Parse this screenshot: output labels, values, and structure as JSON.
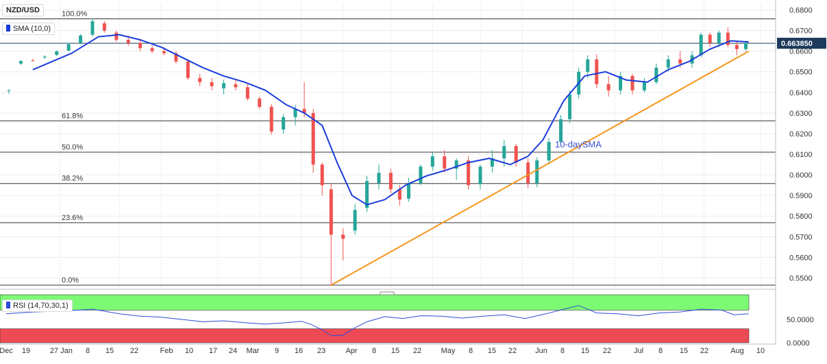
{
  "chart_data": [
    {
      "panel": "price",
      "type": "candlestick",
      "title": "NZD/USD",
      "indicator_label": "SMA (10,0)",
      "annotation": "10-daySMA",
      "current_price_label": "0.663850",
      "current_price": 0.66385,
      "ylim": [
        0.5445,
        0.6835
      ],
      "y_ticks": [
        "0.6800",
        "0.6700",
        "0.6600",
        "0.6500",
        "0.6400",
        "0.6300",
        "0.6200",
        "0.6100",
        "0.6000",
        "0.5900",
        "0.5800",
        "0.5700",
        "0.5600",
        "0.5500"
      ],
      "x_tick_labels": [
        "Dec",
        "19",
        "27",
        "Jan",
        "8",
        "15",
        "22",
        "Feb",
        "10",
        "17",
        "24",
        "Mar",
        "9",
        "16",
        "23",
        "Apr",
        "8",
        "15",
        "22",
        "May",
        "8",
        "15",
        "22",
        "Jun",
        "8",
        "15",
        "22",
        "Jul",
        "8",
        "15",
        "22",
        "Aug",
        "10"
      ],
      "fibonacci": [
        {
          "label": "100.0%",
          "value": 0.6757
        },
        {
          "label": "61.8%",
          "value": 0.6262
        },
        {
          "label": "50.0%",
          "value": 0.611
        },
        {
          "label": "38.2%",
          "value": 0.5958
        },
        {
          "label": "23.6%",
          "value": 0.5768
        },
        {
          "label": "0.0%",
          "value": 0.5465
        }
      ],
      "trendline": {
        "start": {
          "date": "2020-03-19",
          "value": 0.5465
        },
        "end": {
          "date": "2020-08-06",
          "value": 0.66
        }
      },
      "grid": true,
      "colors": {
        "up": "#26a69a",
        "down": "#ef5350",
        "sma": "#1a3bdb",
        "trendline": "#f7941d",
        "fib": "#333333",
        "price_label_bg": "#1d3a5b"
      },
      "sma_points": [
        [
          "2019-12-10",
          0.651
        ],
        [
          "2019-12-23",
          0.659
        ],
        [
          "2020-01-01",
          0.667
        ],
        [
          "2020-01-08",
          0.668
        ],
        [
          "2020-01-15",
          0.6655
        ],
        [
          "2020-01-22",
          0.662
        ],
        [
          "2020-01-29",
          0.657
        ],
        [
          "2020-02-05",
          0.652
        ],
        [
          "2020-02-12",
          0.648
        ],
        [
          "2020-02-19",
          0.645
        ],
        [
          "2020-02-26",
          0.641
        ],
        [
          "2020-03-04",
          0.634
        ],
        [
          "2020-03-10",
          0.63
        ],
        [
          "2020-03-16",
          0.624
        ],
        [
          "2020-03-21",
          0.606
        ],
        [
          "2020-03-26",
          0.59
        ],
        [
          "2020-03-31",
          0.5855
        ],
        [
          "2020-04-06",
          0.588
        ],
        [
          "2020-04-13",
          0.595
        ],
        [
          "2020-04-20",
          0.5995
        ],
        [
          "2020-04-27",
          0.6025
        ],
        [
          "2020-05-04",
          0.606
        ],
        [
          "2020-05-11",
          0.608
        ],
        [
          "2020-05-18",
          0.605
        ],
        [
          "2020-05-24",
          0.609
        ],
        [
          "2020-05-29",
          0.617
        ],
        [
          "2020-06-05",
          0.636
        ],
        [
          "2020-06-12",
          0.648
        ],
        [
          "2020-06-19",
          0.65
        ],
        [
          "2020-06-26",
          0.646
        ],
        [
          "2020-07-03",
          0.645
        ],
        [
          "2020-07-10",
          0.651
        ],
        [
          "2020-07-17",
          0.655
        ],
        [
          "2020-07-24",
          0.661
        ],
        [
          "2020-07-31",
          0.665
        ],
        [
          "2020-08-06",
          0.6645
        ]
      ],
      "candles": [
        {
          "date": "2019-12-02",
          "open": 0.6408,
          "high": 0.6415,
          "low": 0.6392,
          "close": 0.641
        },
        {
          "date": "2019-12-06",
          "open": 0.654,
          "high": 0.6556,
          "low": 0.6534,
          "close": 0.6552
        },
        {
          "date": "2019-12-10",
          "open": 0.6555,
          "high": 0.6563,
          "low": 0.655,
          "close": 0.6552
        },
        {
          "date": "2019-12-14",
          "open": 0.657,
          "high": 0.658,
          "low": 0.6562,
          "close": 0.6574
        },
        {
          "date": "2019-12-18",
          "open": 0.6582,
          "high": 0.6605,
          "low": 0.6576,
          "close": 0.6599
        },
        {
          "date": "2019-12-22",
          "open": 0.6603,
          "high": 0.664,
          "low": 0.6598,
          "close": 0.6634
        },
        {
          "date": "2019-12-26",
          "open": 0.6638,
          "high": 0.6683,
          "low": 0.6633,
          "close": 0.6676
        },
        {
          "date": "2019-12-30",
          "open": 0.668,
          "high": 0.6757,
          "low": 0.6672,
          "close": 0.6745
        },
        {
          "date": "2020-01-03",
          "open": 0.6735,
          "high": 0.6745,
          "low": 0.669,
          "close": 0.67
        },
        {
          "date": "2020-01-07",
          "open": 0.669,
          "high": 0.67,
          "low": 0.6645,
          "close": 0.6655
        },
        {
          "date": "2020-01-11",
          "open": 0.6655,
          "high": 0.6675,
          "low": 0.6625,
          "close": 0.664
        },
        {
          "date": "2020-01-15",
          "open": 0.664,
          "high": 0.666,
          "low": 0.66,
          "close": 0.6615
        },
        {
          "date": "2020-01-19",
          "open": 0.6615,
          "high": 0.6628,
          "low": 0.659,
          "close": 0.66
        },
        {
          "date": "2020-01-23",
          "open": 0.66,
          "high": 0.662,
          "low": 0.658,
          "close": 0.659
        },
        {
          "date": "2020-01-27",
          "open": 0.659,
          "high": 0.66,
          "low": 0.654,
          "close": 0.655
        },
        {
          "date": "2020-01-31",
          "open": 0.655,
          "high": 0.656,
          "low": 0.646,
          "close": 0.647
        },
        {
          "date": "2020-02-04",
          "open": 0.647,
          "high": 0.649,
          "low": 0.643,
          "close": 0.645
        },
        {
          "date": "2020-02-08",
          "open": 0.645,
          "high": 0.647,
          "low": 0.641,
          "close": 0.643
        },
        {
          "date": "2020-02-12",
          "open": 0.642,
          "high": 0.6462,
          "low": 0.639,
          "close": 0.6445
        },
        {
          "date": "2020-02-16",
          "open": 0.644,
          "high": 0.646,
          "low": 0.641,
          "close": 0.6425
        },
        {
          "date": "2020-02-20",
          "open": 0.6425,
          "high": 0.644,
          "low": 0.636,
          "close": 0.637
        },
        {
          "date": "2020-02-24",
          "open": 0.637,
          "high": 0.638,
          "low": 0.632,
          "close": 0.633
        },
        {
          "date": "2020-02-28",
          "open": 0.633,
          "high": 0.6345,
          "low": 0.6195,
          "close": 0.621
        },
        {
          "date": "2020-03-03",
          "open": 0.622,
          "high": 0.6295,
          "low": 0.62,
          "close": 0.628
        },
        {
          "date": "2020-03-07",
          "open": 0.628,
          "high": 0.634,
          "low": 0.624,
          "close": 0.632
        },
        {
          "date": "2020-03-10",
          "open": 0.632,
          "high": 0.645,
          "low": 0.628,
          "close": 0.63
        },
        {
          "date": "2020-03-13",
          "open": 0.63,
          "high": 0.632,
          "low": 0.601,
          "close": 0.605
        },
        {
          "date": "2020-03-16",
          "open": 0.605,
          "high": 0.606,
          "low": 0.59,
          "close": 0.595
        },
        {
          "date": "2020-03-19",
          "open": 0.593,
          "high": 0.596,
          "low": 0.5465,
          "close": 0.571
        },
        {
          "date": "2020-03-23",
          "open": 0.571,
          "high": 0.574,
          "low": 0.5585,
          "close": 0.569
        },
        {
          "date": "2020-03-27",
          "open": 0.573,
          "high": 0.586,
          "low": 0.571,
          "close": 0.583
        },
        {
          "date": "2020-03-31",
          "open": 0.584,
          "high": 0.5995,
          "low": 0.582,
          "close": 0.597
        },
        {
          "date": "2020-04-04",
          "open": 0.596,
          "high": 0.605,
          "low": 0.593,
          "close": 0.601
        },
        {
          "date": "2020-04-08",
          "open": 0.601,
          "high": 0.603,
          "low": 0.591,
          "close": 0.593
        },
        {
          "date": "2020-04-11",
          "open": 0.593,
          "high": 0.595,
          "low": 0.585,
          "close": 0.588
        },
        {
          "date": "2020-04-14",
          "open": 0.5885,
          "high": 0.5985,
          "low": 0.587,
          "close": 0.596
        },
        {
          "date": "2020-04-18",
          "open": 0.596,
          "high": 0.605,
          "low": 0.595,
          "close": 0.604
        },
        {
          "date": "2020-04-22",
          "open": 0.604,
          "high": 0.611,
          "low": 0.602,
          "close": 0.609
        },
        {
          "date": "2020-04-26",
          "open": 0.609,
          "high": 0.612,
          "low": 0.601,
          "close": 0.603
        },
        {
          "date": "2020-04-30",
          "open": 0.603,
          "high": 0.608,
          "low": 0.5975,
          "close": 0.607
        },
        {
          "date": "2020-05-04",
          "open": 0.607,
          "high": 0.609,
          "low": 0.593,
          "close": 0.595
        },
        {
          "date": "2020-05-08",
          "open": 0.5955,
          "high": 0.605,
          "low": 0.593,
          "close": 0.604
        },
        {
          "date": "2020-05-12",
          "open": 0.604,
          "high": 0.612,
          "low": 0.601,
          "close": 0.608
        },
        {
          "date": "2020-05-16",
          "open": 0.608,
          "high": 0.617,
          "low": 0.604,
          "close": 0.614
        },
        {
          "date": "2020-05-20",
          "open": 0.614,
          "high": 0.615,
          "low": 0.604,
          "close": 0.606
        },
        {
          "date": "2020-05-24",
          "open": 0.606,
          "high": 0.608,
          "low": 0.5935,
          "close": 0.596
        },
        {
          "date": "2020-05-27",
          "open": 0.596,
          "high": 0.6085,
          "low": 0.594,
          "close": 0.607
        },
        {
          "date": "2020-05-31",
          "open": 0.607,
          "high": 0.618,
          "low": 0.605,
          "close": 0.616
        },
        {
          "date": "2020-06-04",
          "open": 0.616,
          "high": 0.629,
          "low": 0.614,
          "close": 0.627
        },
        {
          "date": "2020-06-07",
          "open": 0.627,
          "high": 0.641,
          "low": 0.625,
          "close": 0.639
        },
        {
          "date": "2020-06-10",
          "open": 0.639,
          "high": 0.652,
          "low": 0.637,
          "close": 0.65
        },
        {
          "date": "2020-06-13",
          "open": 0.65,
          "high": 0.658,
          "low": 0.647,
          "close": 0.656
        },
        {
          "date": "2020-06-16",
          "open": 0.656,
          "high": 0.6585,
          "low": 0.642,
          "close": 0.644
        },
        {
          "date": "2020-06-20",
          "open": 0.644,
          "high": 0.648,
          "low": 0.638,
          "close": 0.641
        },
        {
          "date": "2020-06-24",
          "open": 0.641,
          "high": 0.65,
          "low": 0.639,
          "close": 0.648
        },
        {
          "date": "2020-06-28",
          "open": 0.648,
          "high": 0.649,
          "low": 0.639,
          "close": 0.641
        },
        {
          "date": "2020-07-02",
          "open": 0.641,
          "high": 0.647,
          "low": 0.64,
          "close": 0.645
        },
        {
          "date": "2020-07-06",
          "open": 0.645,
          "high": 0.654,
          "low": 0.644,
          "close": 0.652
        },
        {
          "date": "2020-07-10",
          "open": 0.652,
          "high": 0.658,
          "low": 0.65,
          "close": 0.656
        },
        {
          "date": "2020-07-14",
          "open": 0.656,
          "high": 0.66,
          "low": 0.652,
          "close": 0.654
        },
        {
          "date": "2020-07-18",
          "open": 0.654,
          "high": 0.66,
          "low": 0.652,
          "close": 0.658
        },
        {
          "date": "2020-07-21",
          "open": 0.658,
          "high": 0.669,
          "low": 0.657,
          "close": 0.668
        },
        {
          "date": "2020-07-24",
          "open": 0.668,
          "high": 0.669,
          "low": 0.662,
          "close": 0.664
        },
        {
          "date": "2020-07-27",
          "open": 0.664,
          "high": 0.67,
          "low": 0.662,
          "close": 0.669
        },
        {
          "date": "2020-07-30",
          "open": 0.669,
          "high": 0.6715,
          "low": 0.662,
          "close": 0.663
        },
        {
          "date": "2020-08-02",
          "open": 0.663,
          "high": 0.665,
          "low": 0.658,
          "close": 0.661
        },
        {
          "date": "2020-08-05",
          "open": 0.661,
          "high": 0.665,
          "low": 0.66,
          "close": 0.6639
        }
      ]
    },
    {
      "panel": "indicator",
      "type": "line",
      "title": "RSI (14,70,30,1)",
      "ylim": [
        0,
        100
      ],
      "y_ticks": [
        "50.0000",
        "0.0000"
      ],
      "overbought": 70,
      "oversold": 30,
      "colors": {
        "line": "#2b4bd8",
        "overbought_band": "#7dfa74",
        "oversold_band": "#ee4a55"
      },
      "series": [
        {
          "values": [
            [
              "2019-12-01",
              62
            ],
            [
              "2019-12-10",
              66
            ],
            [
              "2019-12-20",
              68
            ],
            [
              "2019-12-30",
              72
            ],
            [
              "2020-01-08",
              62
            ],
            [
              "2020-01-15",
              57
            ],
            [
              "2020-01-22",
              55
            ],
            [
              "2020-01-29",
              50
            ],
            [
              "2020-02-05",
              45
            ],
            [
              "2020-02-12",
              47
            ],
            [
              "2020-02-19",
              43
            ],
            [
              "2020-02-26",
              40
            ],
            [
              "2020-03-04",
              43
            ],
            [
              "2020-03-09",
              46
            ],
            [
              "2020-03-12",
              40
            ],
            [
              "2020-03-16",
              28
            ],
            [
              "2020-03-19",
              15
            ],
            [
              "2020-03-23",
              16
            ],
            [
              "2020-03-27",
              32
            ],
            [
              "2020-03-31",
              45
            ],
            [
              "2020-04-06",
              56
            ],
            [
              "2020-04-12",
              52
            ],
            [
              "2020-04-18",
              58
            ],
            [
              "2020-04-25",
              57
            ],
            [
              "2020-05-02",
              53
            ],
            [
              "2020-05-09",
              57
            ],
            [
              "2020-05-16",
              60
            ],
            [
              "2020-05-23",
              52
            ],
            [
              "2020-05-30",
              62
            ],
            [
              "2020-06-05",
              72
            ],
            [
              "2020-06-10",
              80
            ],
            [
              "2020-06-16",
              64
            ],
            [
              "2020-06-23",
              62
            ],
            [
              "2020-06-30",
              58
            ],
            [
              "2020-07-07",
              64
            ],
            [
              "2020-07-14",
              66
            ],
            [
              "2020-07-21",
              72
            ],
            [
              "2020-07-28",
              70
            ],
            [
              "2020-08-01",
              60
            ],
            [
              "2020-08-06",
              62
            ]
          ]
        }
      ]
    }
  ]
}
